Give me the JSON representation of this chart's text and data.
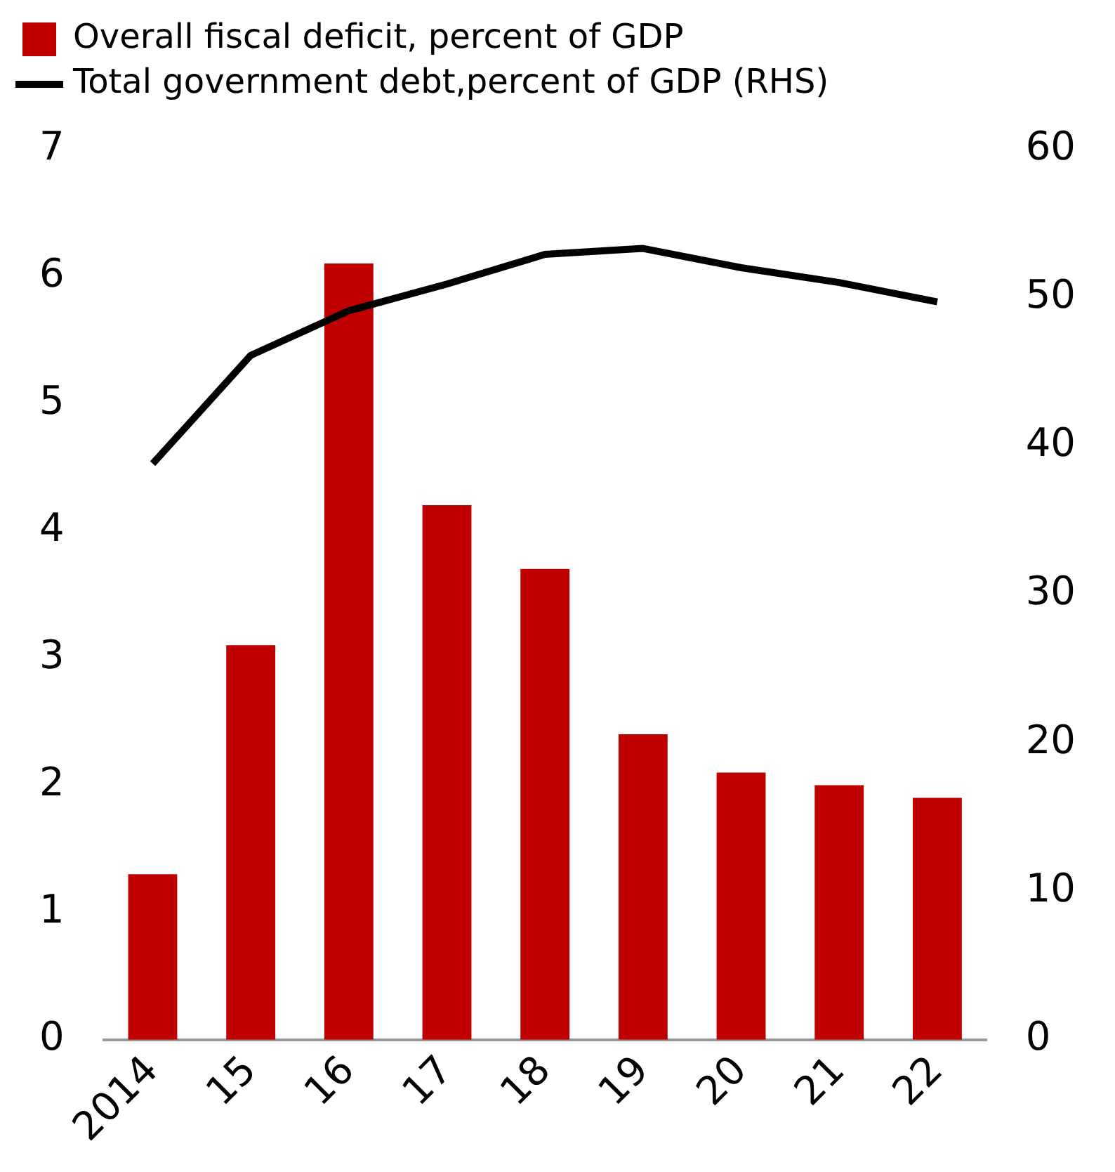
{
  "chart_data": {
    "type": "bar",
    "categories": [
      "2014",
      "15",
      "16",
      "17",
      "18",
      "19",
      "20",
      "21",
      "22"
    ],
    "series": [
      {
        "name": "Overall fiscal deficit, percent of GDP",
        "color": "#c00000",
        "values": [
          1.3,
          3.1,
          6.1,
          4.2,
          3.7,
          2.4,
          2.1,
          2.0,
          1.9
        ]
      },
      {
        "name": "Total government debt,percent of GDP (RHS)",
        "type": "line",
        "axis": "y2",
        "color": "#000000",
        "values": [
          38.8,
          46.1,
          49.1,
          50.9,
          52.9,
          53.3,
          52.0,
          51.0,
          49.7
        ]
      }
    ],
    "ylim": [
      0,
      7
    ],
    "yticks": [
      0,
      1,
      2,
      3,
      4,
      5,
      6,
      7
    ],
    "y2lim": [
      0,
      60
    ],
    "y2ticks": [
      0,
      10,
      20,
      30,
      40,
      50,
      60
    ],
    "legend": "top left"
  }
}
